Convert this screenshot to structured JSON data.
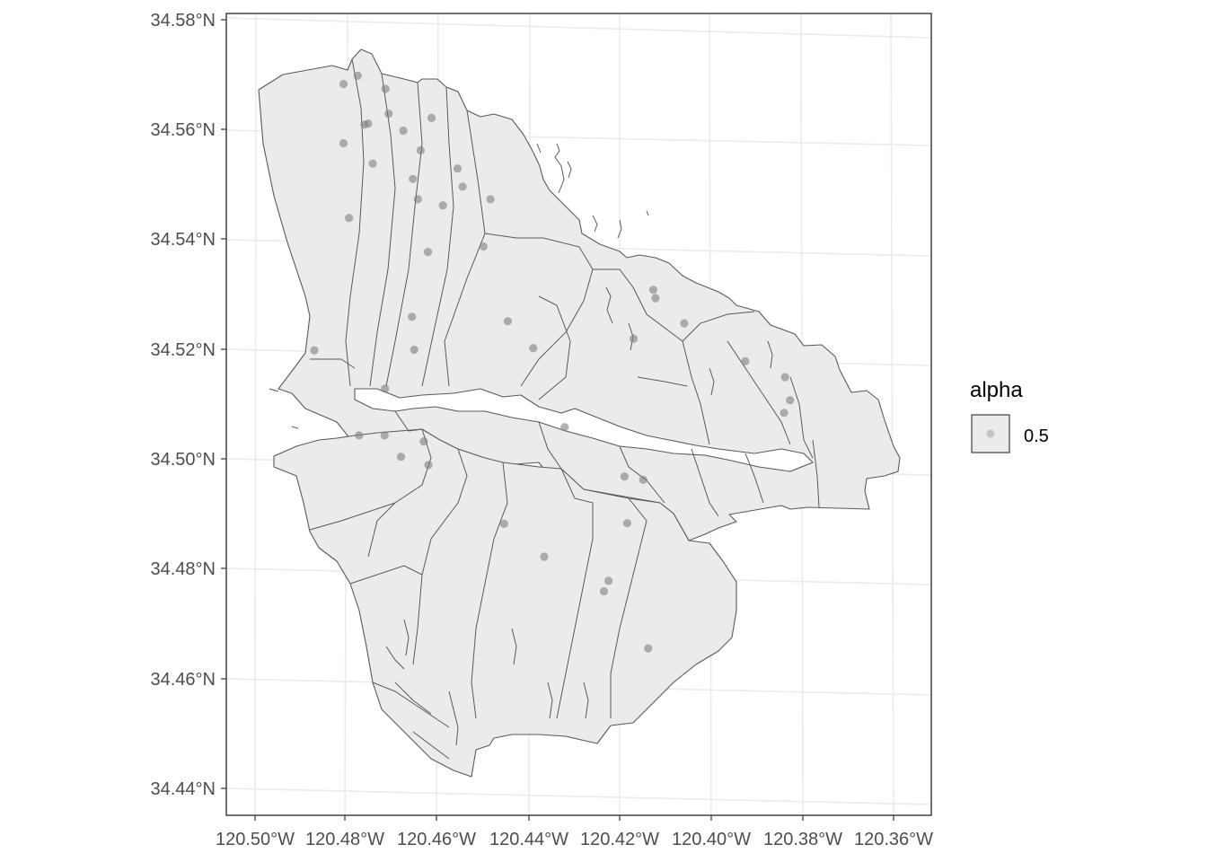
{
  "map": {
    "fill_color": "#ebebeb",
    "line_color": "#595959",
    "point_color": "#7f7f7f",
    "grid_color": "#ebebeb",
    "lat_ticks": [
      "34.58°N",
      "34.56°N",
      "34.54°N",
      "34.52°N",
      "34.50°N",
      "34.48°N",
      "34.46°N",
      "34.44°N"
    ],
    "lon_ticks": [
      "120.50°W",
      "120.48°W",
      "120.46°W",
      "120.44°W",
      "120.42°W",
      "120.40°W",
      "120.38°W",
      "120.36°W"
    ],
    "lat_range": [
      34.435,
      34.581
    ],
    "lon_range": [
      -120.507,
      -120.351
    ],
    "points": [
      {
        "lon": -120.4775,
        "lat": 34.5698
      },
      {
        "lon": -120.4806,
        "lat": 34.5683
      },
      {
        "lon": -120.4714,
        "lat": 34.5674
      },
      {
        "lon": -120.4707,
        "lat": 34.5629
      },
      {
        "lon": -120.4752,
        "lat": 34.5611
      },
      {
        "lon": -120.476,
        "lat": 34.5609
      },
      {
        "lon": -120.4675,
        "lat": 34.5598
      },
      {
        "lon": -120.4613,
        "lat": 34.5621
      },
      {
        "lon": -120.4806,
        "lat": 34.5575
      },
      {
        "lon": -120.4637,
        "lat": 34.5562
      },
      {
        "lon": -120.4742,
        "lat": 34.5538
      },
      {
        "lon": -120.4556,
        "lat": 34.5529
      },
      {
        "lon": -120.4654,
        "lat": 34.551
      },
      {
        "lon": -120.4545,
        "lat": 34.5496
      },
      {
        "lon": -120.4643,
        "lat": 34.5473
      },
      {
        "lon": -120.4484,
        "lat": 34.5473
      },
      {
        "lon": -120.4588,
        "lat": 34.5462
      },
      {
        "lon": -120.4794,
        "lat": 34.5439
      },
      {
        "lon": -120.4621,
        "lat": 34.5377
      },
      {
        "lon": -120.4499,
        "lat": 34.5387
      },
      {
        "lon": -120.4127,
        "lat": 34.5308
      },
      {
        "lon": -120.4122,
        "lat": 34.5293
      },
      {
        "lon": -120.4059,
        "lat": 34.5247
      },
      {
        "lon": -120.4656,
        "lat": 34.5259
      },
      {
        "lon": -120.4446,
        "lat": 34.5251
      },
      {
        "lon": -120.4651,
        "lat": 34.5199
      },
      {
        "lon": -120.439,
        "lat": 34.5202
      },
      {
        "lon": -120.417,
        "lat": 34.5219
      },
      {
        "lon": -120.487,
        "lat": 34.5198
      },
      {
        "lon": -120.3925,
        "lat": 34.5178
      },
      {
        "lon": -120.3838,
        "lat": 34.5149
      },
      {
        "lon": -120.3827,
        "lat": 34.5107
      },
      {
        "lon": -120.384,
        "lat": 34.5084
      },
      {
        "lon": -120.4715,
        "lat": 34.5128
      },
      {
        "lon": -120.4321,
        "lat": 34.5058
      },
      {
        "lon": -120.4772,
        "lat": 34.5043
      },
      {
        "lon": -120.4716,
        "lat": 34.5043
      },
      {
        "lon": -120.463,
        "lat": 34.5032
      },
      {
        "lon": -120.468,
        "lat": 34.5004
      },
      {
        "lon": -120.462,
        "lat": 34.4989
      },
      {
        "lon": -120.419,
        "lat": 34.4968
      },
      {
        "lon": -120.4149,
        "lat": 34.4962
      },
      {
        "lon": -120.4454,
        "lat": 34.4882
      },
      {
        "lon": -120.4184,
        "lat": 34.4883
      },
      {
        "lon": -120.4366,
        "lat": 34.4822
      },
      {
        "lon": -120.4225,
        "lat": 34.4778
      },
      {
        "lon": -120.4235,
        "lat": 34.4759
      },
      {
        "lon": -120.4138,
        "lat": 34.4655
      }
    ]
  },
  "legend": {
    "title": "alpha",
    "label": "0.5"
  }
}
